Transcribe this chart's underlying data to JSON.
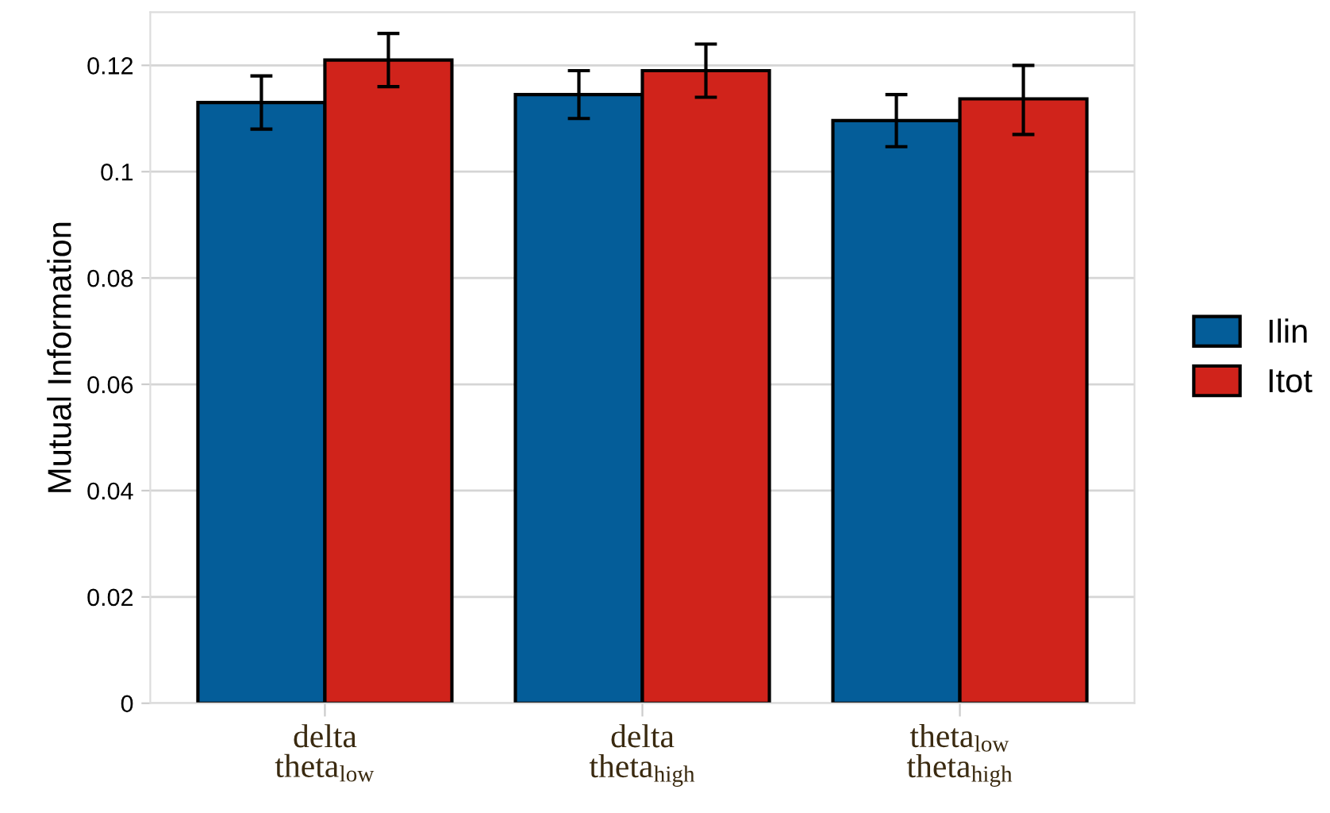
{
  "chart_data": {
    "type": "bar",
    "ylabel": "Mutual Information",
    "categories": [
      "delta\ntheta$_{low}$",
      "delta\ntheta$_{high}$",
      "theta$_{low}$\ntheta$_{high}$"
    ],
    "series": [
      {
        "name": "Ilin",
        "color": "#045d99",
        "values": [
          0.113,
          0.1145,
          0.1096
        ],
        "errors": [
          [
            0.108,
            0.118
          ],
          [
            0.11,
            0.119
          ],
          [
            0.1047,
            0.1145
          ]
        ]
      },
      {
        "name": "Itot",
        "color": "#d0231b",
        "values": [
          0.121,
          0.119,
          0.1137
        ],
        "errors": [
          [
            0.116,
            0.126
          ],
          [
            0.114,
            0.124
          ],
          [
            0.107,
            0.12
          ]
        ]
      }
    ],
    "ylim": [
      0,
      0.13
    ],
    "yticks": [
      0,
      0.02,
      0.04,
      0.06,
      0.08,
      0.1,
      0.12
    ],
    "grid": "y",
    "legend": "right"
  }
}
